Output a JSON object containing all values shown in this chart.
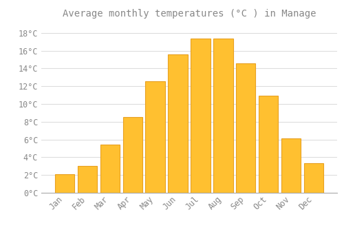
{
  "title": "Average monthly temperatures (°C ) in Manage",
  "months": [
    "Jan",
    "Feb",
    "Mar",
    "Apr",
    "May",
    "Jun",
    "Jul",
    "Aug",
    "Sep",
    "Oct",
    "Nov",
    "Dec"
  ],
  "values": [
    2.1,
    3.0,
    5.4,
    8.5,
    12.6,
    15.6,
    17.4,
    17.4,
    14.6,
    10.9,
    6.1,
    3.3
  ],
  "bar_color": "#FFC030",
  "bar_edge_color": "#E8A020",
  "background_color": "#FFFFFF",
  "grid_color": "#DDDDDD",
  "text_color": "#888888",
  "ylim": [
    0,
    19
  ],
  "yticks": [
    0,
    2,
    4,
    6,
    8,
    10,
    12,
    14,
    16,
    18
  ],
  "title_fontsize": 10,
  "tick_fontsize": 8.5
}
